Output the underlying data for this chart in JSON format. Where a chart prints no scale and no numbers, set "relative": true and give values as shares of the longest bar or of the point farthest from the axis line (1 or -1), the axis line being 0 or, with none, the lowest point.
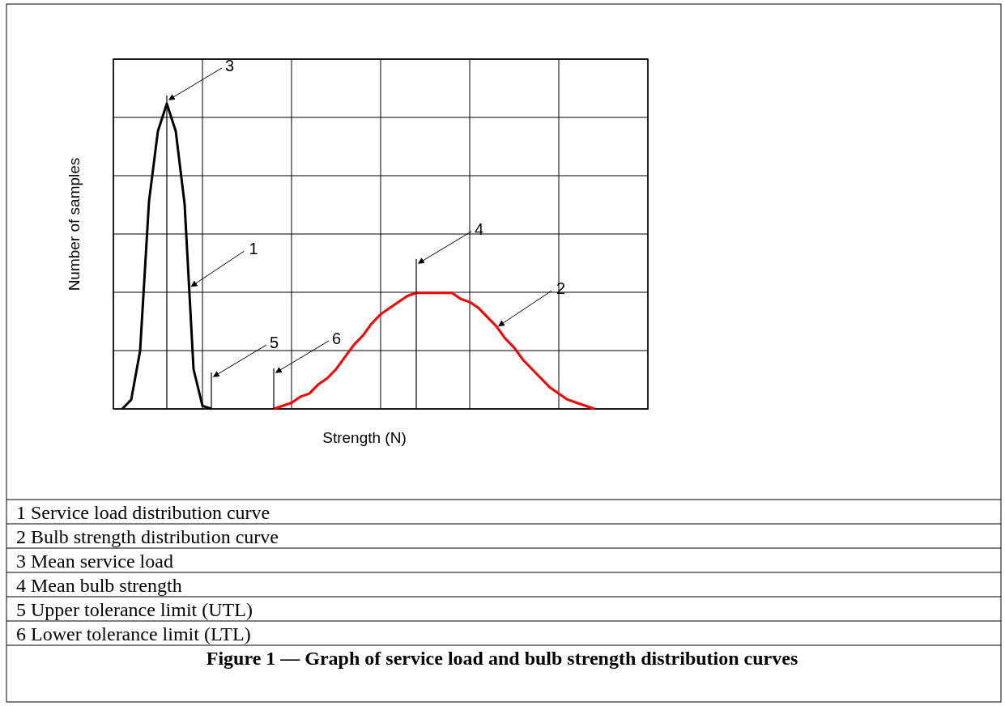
{
  "chart_data": {
    "type": "line",
    "title": "Figure 1 — Graph of service load and bulb strength distribution curves",
    "xlabel": "Strength (N)",
    "ylabel": "Number of samples",
    "relative": true,
    "grid": true,
    "line_style": "solid",
    "categories": [
      null,
      null,
      null,
      null,
      null,
      null,
      null,
      null,
      null,
      null,
      null,
      null,
      null,
      null,
      null,
      null,
      null,
      null,
      null,
      null,
      null,
      null,
      null,
      null,
      null,
      null,
      null,
      null,
      null,
      null,
      null,
      null,
      null,
      null,
      null,
      null,
      null,
      null,
      null,
      null,
      null,
      null,
      null,
      null,
      null,
      null,
      null,
      null,
      null,
      null,
      null,
      null,
      null,
      null,
      null,
      null,
      null,
      null,
      null,
      null,
      null
    ],
    "series": [
      {
        "color": "#000000",
        "values": [
          null,
          0,
          0.03,
          0.19,
          0.68,
          0.91,
          1,
          0.91,
          0.67,
          0.13,
          0.01,
          0,
          null,
          null,
          null,
          null,
          null,
          null,
          null,
          null,
          null,
          null,
          null,
          null,
          null,
          null,
          null,
          null,
          null,
          null,
          null,
          null,
          null,
          null,
          null,
          null,
          null,
          null,
          null,
          null,
          null,
          null,
          null,
          null,
          null,
          null,
          null,
          null,
          null,
          null,
          null,
          null,
          null,
          null,
          null,
          null,
          null,
          null,
          null,
          null,
          null
        ]
      },
      {
        "color": "#ff0000",
        "values": [
          null,
          null,
          null,
          null,
          null,
          null,
          null,
          null,
          null,
          null,
          null,
          null,
          null,
          null,
          null,
          null,
          null,
          null,
          0,
          0.01,
          0.02,
          0.04,
          0.05,
          0.08,
          0.1,
          0.13,
          0.17,
          0.21,
          0.24,
          0.28,
          0.31,
          0.33,
          0.35,
          0.37,
          0.38,
          0.38,
          0.38,
          0.38,
          0.38,
          0.36,
          0.35,
          0.33,
          0.3,
          0.27,
          0.23,
          0.2,
          0.16,
          0.13,
          0.1,
          0.07,
          0.05,
          0.03,
          0.02,
          0.01,
          0,
          null,
          null,
          null,
          null,
          null,
          null
        ]
      }
    ],
    "annotations": [
      "1",
      "2",
      "3",
      "4",
      "5",
      "6",
      "1 Service load distribution curve",
      "2 Bulb strength distribution curve",
      "3 Mean service load",
      "4 Mean bulb strength",
      "5 Upper tolerance limit (UTL)",
      "6 Lower tolerance limit (LTL)"
    ]
  }
}
